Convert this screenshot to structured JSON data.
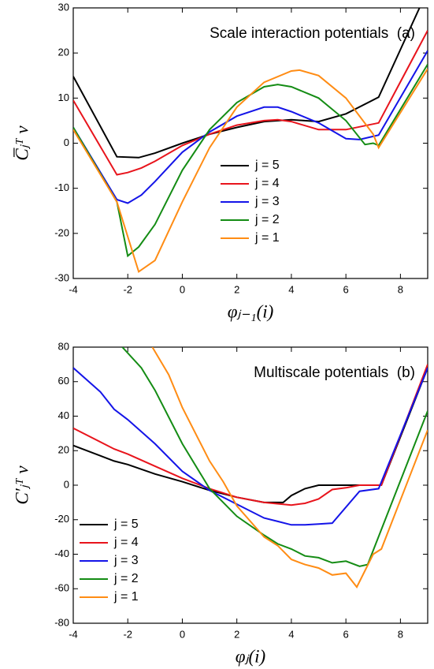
{
  "chart_data": [
    {
      "type": "line",
      "title": "Scale interaction potentials  (a)",
      "x_label": "φⱼ₋₁(i)",
      "y_label": "C̅ⱼᵀ v",
      "xlim": [
        -4,
        9
      ],
      "ylim": [
        -30,
        30
      ],
      "xticks": [
        -4,
        -2,
        0,
        2,
        4,
        6,
        8
      ],
      "yticks": [
        -30,
        -20,
        -10,
        0,
        10,
        20,
        30
      ],
      "legend": "center",
      "series": [
        {
          "name": "j = 5",
          "color": "#000000",
          "x": [
            -4,
            -2.4,
            -1.6,
            -1,
            0,
            1,
            2,
            3,
            4,
            5,
            6,
            7.2,
            8.7
          ],
          "values": [
            14.8,
            -3,
            -3.2,
            -2.2,
            0,
            2,
            3.5,
            4.8,
            5.2,
            4.8,
            6.5,
            10.2,
            30
          ]
        },
        {
          "name": "j = 4",
          "color": "#e8141c",
          "x": [
            -4,
            -2.4,
            -2,
            -1.5,
            -1,
            0,
            1,
            2,
            3,
            3.5,
            4,
            5,
            6,
            7.2,
            9
          ],
          "values": [
            9.5,
            -7,
            -6.5,
            -5.5,
            -4,
            -0.5,
            2,
            4,
            5,
            5.2,
            4.8,
            3,
            3,
            4.5,
            25
          ]
        },
        {
          "name": "j = 3",
          "color": "#1414e8",
          "x": [
            -4,
            -2.4,
            -2,
            -1.5,
            -1,
            0,
            1,
            2,
            3,
            3.5,
            4,
            5,
            6,
            6.5,
            7.2,
            9
          ],
          "values": [
            3.5,
            -12.5,
            -13.3,
            -11.5,
            -8.5,
            -2,
            2.5,
            6,
            8,
            8,
            7,
            4.5,
            1,
            0.8,
            1.8,
            20.5
          ]
        },
        {
          "name": "j = 2",
          "color": "#148c14",
          "x": [
            -4,
            -2.4,
            -2,
            -1.6,
            -1,
            0,
            1,
            2,
            3,
            3.5,
            4,
            5,
            6,
            6.7,
            7,
            7.2,
            9
          ],
          "values": [
            3.5,
            -13,
            -25,
            -23,
            -18,
            -6,
            3,
            9,
            12.5,
            13,
            12.5,
            10,
            5,
            -0.3,
            0,
            -0.5,
            17.5
          ]
        },
        {
          "name": "j = 1",
          "color": "#ff8c14",
          "x": [
            -4,
            -2.4,
            -1.6,
            -1,
            0,
            1,
            2,
            3,
            4,
            4.3,
            5,
            6,
            7,
            7.2,
            9
          ],
          "values": [
            3,
            -13,
            -28.5,
            -26,
            -13,
            -1,
            8,
            13.5,
            16,
            16.2,
            15,
            10,
            2,
            -1,
            16.5
          ]
        }
      ]
    },
    {
      "type": "line",
      "title": "Multiscale potentials  (b)",
      "x_label": "φⱼ(i)",
      "y_label": "C′ⱼᵀ v",
      "xlim": [
        -4,
        9
      ],
      "ylim": [
        -80,
        80
      ],
      "xticks": [
        -4,
        -2,
        0,
        2,
        4,
        6,
        8
      ],
      "yticks": [
        -80,
        -60,
        -40,
        -20,
        0,
        20,
        40,
        60,
        80
      ],
      "legend": "lower left",
      "series": [
        {
          "name": "j = 5",
          "color": "#000000",
          "x": [
            -4,
            -2.5,
            -2,
            -1,
            0,
            1,
            2,
            3,
            3.7,
            4,
            4.5,
            5,
            6,
            7,
            7.3,
            9
          ],
          "values": [
            23,
            14,
            12,
            6.5,
            2,
            -3,
            -7,
            -10,
            -10,
            -6,
            -2,
            0,
            0,
            0,
            0,
            68
          ]
        },
        {
          "name": "j = 4",
          "color": "#e8141c",
          "x": [
            -4,
            -2.5,
            -2,
            -1,
            0,
            1,
            2,
            3,
            4,
            4.5,
            5,
            5.5,
            6,
            6.5,
            7.3,
            9
          ],
          "values": [
            33,
            21,
            18,
            11,
            4,
            -2,
            -7,
            -10,
            -11.5,
            -10.5,
            -8,
            -2.5,
            -1.5,
            0,
            0,
            70
          ]
        },
        {
          "name": "j = 3",
          "color": "#1414e8",
          "x": [
            -4,
            -3,
            -2.5,
            -2,
            -1,
            0,
            1,
            2,
            3,
            3.5,
            4,
            4.5,
            5,
            5.5,
            6.5,
            7.2,
            9
          ],
          "values": [
            68,
            54,
            44,
            38,
            24,
            8,
            -3,
            -11,
            -19,
            -21,
            -23,
            -23,
            -22.5,
            -22,
            -3.5,
            -2,
            68
          ]
        },
        {
          "name": "j = 2",
          "color": "#148c14",
          "x": [
            -2.2,
            -1.5,
            -1,
            0,
            1,
            2,
            3,
            3.5,
            4,
            4.5,
            5,
            5.5,
            6,
            6.5,
            6.8,
            9
          ],
          "values": [
            80,
            68,
            55,
            24,
            -2,
            -18,
            -29,
            -34,
            -37,
            -41,
            -42,
            -45,
            -44,
            -47,
            -46,
            43
          ]
        },
        {
          "name": "j = 1",
          "color": "#ff8c14",
          "x": [
            -1.1,
            -0.5,
            0,
            1,
            1.5,
            2,
            3,
            3.5,
            4,
            4.5,
            5,
            5.5,
            6,
            6.4,
            7,
            7.3,
            9
          ],
          "values": [
            80,
            64,
            45,
            14,
            2,
            -12,
            -30,
            -35,
            -43,
            -46,
            -48,
            -52,
            -51,
            -59,
            -40,
            -37,
            32
          ]
        }
      ]
    }
  ]
}
